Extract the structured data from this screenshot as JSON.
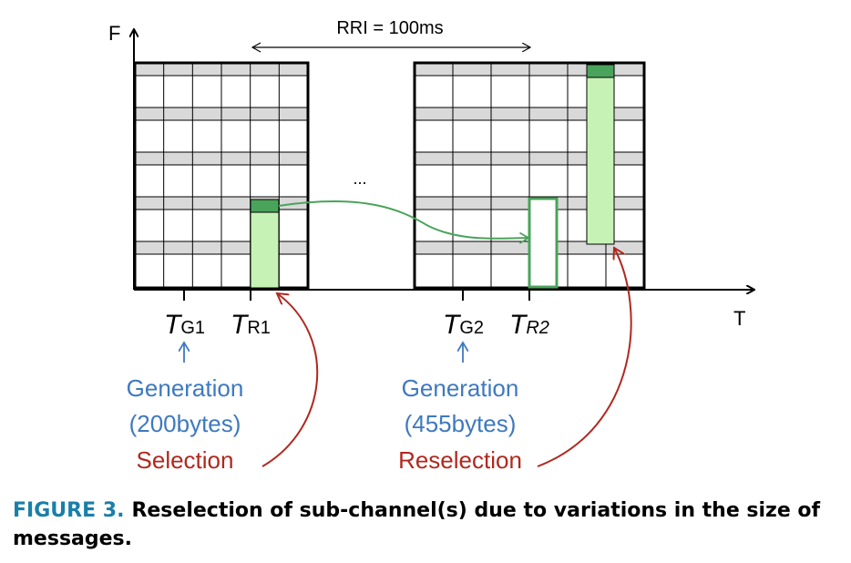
{
  "axes": {
    "f_label": "F",
    "t_label": "T"
  },
  "rri_label": "RRI = 100ms",
  "ellipsis": "...",
  "time_marks": [
    {
      "base": "T",
      "sub": "G1"
    },
    {
      "base": "T",
      "sub": "R1"
    },
    {
      "base": "T",
      "sub": "G2"
    },
    {
      "base": "T",
      "sub": "R2"
    }
  ],
  "annotations": {
    "gen1_line1": "Generation",
    "gen1_line2": "(200bytes)",
    "sel1": "Selection",
    "gen2_line1": "Generation",
    "gen2_line2": "(455bytes)",
    "sel2": "Reselection"
  },
  "caption": {
    "label": "FIGURE 3.",
    "text": "Reselection of sub-channel(s) due to variations in the size of messages."
  },
  "colors": {
    "gen_text": "#3e79bf",
    "sel_text": "#b0281f",
    "green_dark": "#4aa35a",
    "green_light": "#c6f3b5",
    "grey_row": "#d9d9d9",
    "caption_label": "#1a7fa8"
  }
}
